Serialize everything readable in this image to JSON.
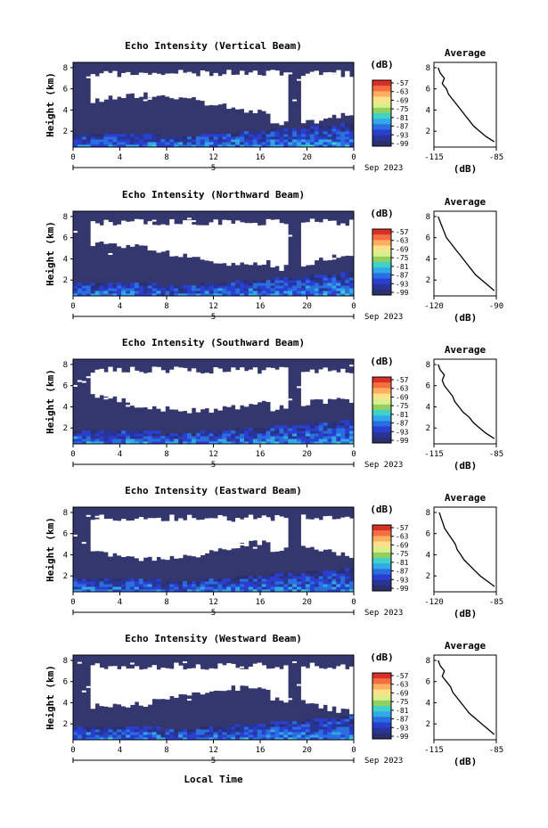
{
  "figure": {
    "x_axis_label": "Local Time",
    "y_axis_label": "Height (km)",
    "date_label": "Sep 2023",
    "colorbar_unit": "(dB)",
    "colorbar_ticks": [
      "-57",
      "-63",
      "-69",
      "-75",
      "-81",
      "-87",
      "-93",
      "-99"
    ],
    "colorbar_colors": [
      "#d73027",
      "#f46d43",
      "#fdae61",
      "#fee08b",
      "#d9ef8b",
      "#91cf60",
      "#3fd2c8",
      "#33a8e8",
      "#2a6fe0",
      "#2a3fd0",
      "#283594",
      "#2b2f6e"
    ],
    "avg_title": "Average",
    "avg_xlabel": "(dB)",
    "sub_tick_label": "5",
    "noecho_color": "#ffffff",
    "background_echo_color": "#34376e"
  },
  "chart_data": [
    {
      "type": "heatmap",
      "title": "Echo Intensity (Vertical Beam)",
      "x_ticks": [
        "0",
        "4",
        "8",
        "12",
        "16",
        "20",
        "0"
      ],
      "y_ticks": [
        "2",
        "4",
        "6",
        "8"
      ],
      "xlim": [
        0,
        24
      ],
      "ylim": [
        0.5,
        8.5
      ],
      "zlim": [
        -99,
        -57
      ],
      "profile": {
        "title": "Average",
        "xlim": [
          -115,
          -85
        ],
        "x_ticks": [
          "-115",
          "-85"
        ],
        "y_ticks": [
          "2",
          "4",
          "6",
          "8"
        ],
        "height": [
          1.0,
          1.5,
          2.0,
          2.5,
          3.0,
          3.5,
          4.0,
          4.5,
          5.0,
          5.5,
          6.0,
          6.5,
          7.0,
          7.5,
          8.0
        ],
        "value": [
          -86,
          -90,
          -93,
          -96,
          -98,
          -100,
          -102,
          -104,
          -106,
          -108,
          -109,
          -111,
          -110,
          -112,
          -113
        ]
      }
    },
    {
      "type": "heatmap",
      "title": "Echo Intensity (Northward Beam)",
      "x_ticks": [
        "0",
        "4",
        "8",
        "12",
        "16",
        "20",
        "0"
      ],
      "y_ticks": [
        "2",
        "4",
        "6",
        "8"
      ],
      "xlim": [
        0,
        24
      ],
      "ylim": [
        0.5,
        8.5
      ],
      "zlim": [
        -99,
        -57
      ],
      "profile": {
        "title": "Average",
        "xlim": [
          -120,
          -90
        ],
        "x_ticks": [
          "-120",
          "-90"
        ],
        "y_ticks": [
          "2",
          "4",
          "6",
          "8"
        ],
        "height": [
          1.0,
          1.5,
          2.0,
          2.5,
          3.0,
          3.5,
          4.0,
          4.5,
          5.0,
          5.5,
          6.0,
          6.5,
          7.0,
          7.5,
          8.0
        ],
        "value": [
          -91,
          -94,
          -97,
          -100,
          -102,
          -104,
          -106,
          -108,
          -110,
          -112,
          -114,
          -115,
          -116,
          -117,
          -118
        ]
      }
    },
    {
      "type": "heatmap",
      "title": "Echo Intensity (Southward Beam)",
      "x_ticks": [
        "0",
        "4",
        "8",
        "12",
        "16",
        "20",
        "0"
      ],
      "y_ticks": [
        "2",
        "4",
        "6",
        "8"
      ],
      "xlim": [
        0,
        24
      ],
      "ylim": [
        0.5,
        8.5
      ],
      "zlim": [
        -99,
        -57
      ],
      "profile": {
        "title": "Average",
        "xlim": [
          -115,
          -85
        ],
        "x_ticks": [
          "-115",
          "-85"
        ],
        "y_ticks": [
          "2",
          "4",
          "6",
          "8"
        ],
        "height": [
          1.0,
          1.5,
          2.0,
          2.5,
          3.0,
          3.5,
          4.0,
          4.5,
          5.0,
          5.5,
          6.0,
          6.5,
          7.0,
          7.5,
          8.0
        ],
        "value": [
          -86,
          -90,
          -93,
          -96,
          -98,
          -101,
          -103,
          -105,
          -106,
          -108,
          -110,
          -111,
          -110,
          -112,
          -113
        ]
      }
    },
    {
      "type": "heatmap",
      "title": "Echo Intensity (Eastward Beam)",
      "x_ticks": [
        "0",
        "4",
        "8",
        "12",
        "16",
        "20",
        "0"
      ],
      "y_ticks": [
        "2",
        "4",
        "6",
        "8"
      ],
      "xlim": [
        0,
        24
      ],
      "ylim": [
        0.5,
        8.5
      ],
      "zlim": [
        -99,
        -57
      ],
      "profile": {
        "title": "Average",
        "xlim": [
          -120,
          -85
        ],
        "x_ticks": [
          "-120",
          "-85"
        ],
        "y_ticks": [
          "2",
          "4",
          "6",
          "8"
        ],
        "height": [
          1.0,
          1.5,
          2.0,
          2.5,
          3.0,
          3.5,
          4.0,
          4.5,
          5.0,
          5.5,
          6.0,
          6.5,
          7.0,
          7.5,
          8.0
        ],
        "value": [
          -86,
          -90,
          -94,
          -97,
          -100,
          -103,
          -105,
          -107,
          -108,
          -110,
          -112,
          -114,
          -115,
          -116,
          -117
        ]
      }
    },
    {
      "type": "heatmap",
      "title": "Echo Intensity (Westward Beam)",
      "x_ticks": [
        "0",
        "4",
        "8",
        "12",
        "16",
        "20",
        "0"
      ],
      "y_ticks": [
        "2",
        "4",
        "6",
        "8"
      ],
      "xlim": [
        0,
        24
      ],
      "ylim": [
        0.5,
        8.5
      ],
      "zlim": [
        -99,
        -57
      ],
      "profile": {
        "title": "Average",
        "xlim": [
          -115,
          -85
        ],
        "x_ticks": [
          "-115",
          "-85"
        ],
        "y_ticks": [
          "2",
          "4",
          "6",
          "8"
        ],
        "height": [
          1.0,
          1.5,
          2.0,
          2.5,
          3.0,
          3.5,
          4.0,
          4.5,
          5.0,
          5.5,
          6.0,
          6.5,
          7.0,
          7.5,
          8.0
        ],
        "value": [
          -86,
          -89,
          -92,
          -95,
          -98,
          -100,
          -102,
          -104,
          -106,
          -107,
          -109,
          -111,
          -110,
          -112,
          -113
        ]
      }
    }
  ]
}
